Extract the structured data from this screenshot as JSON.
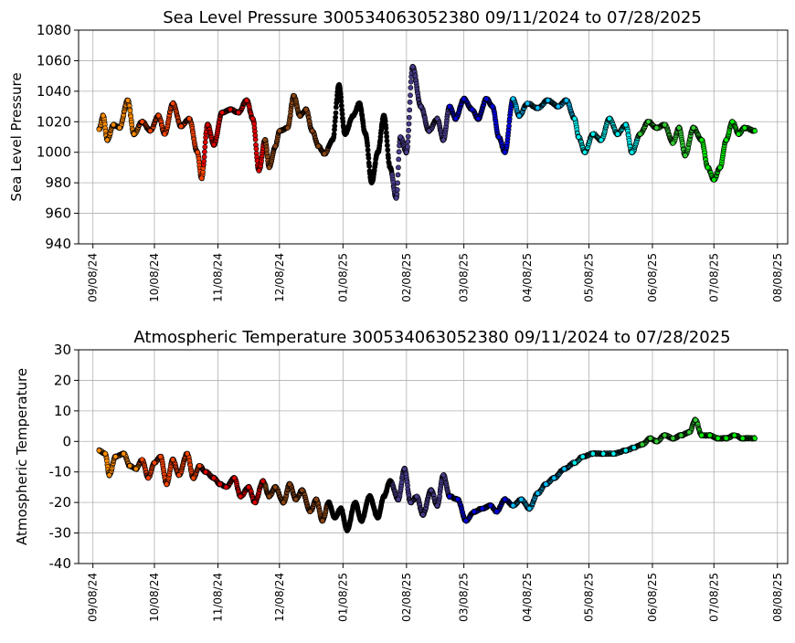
{
  "chart_data": [
    {
      "type": "scatter",
      "title": "Sea Level Pressure 300534063052380  09/11/2024 to 07/28/2025",
      "xlabel": "",
      "ylabel": "Sea Level Pressure",
      "ylim": [
        940,
        1080
      ],
      "yticks": [
        940,
        960,
        980,
        1000,
        1020,
        1040,
        1060,
        1080
      ],
      "xticks": [
        "09/08/24",
        "10/08/24",
        "11/08/24",
        "12/08/24",
        "01/08/25",
        "02/08/25",
        "03/08/25",
        "04/08/25",
        "05/08/25",
        "06/08/25",
        "07/08/25",
        "08/08/25"
      ],
      "grid": true,
      "month_colors": [
        "#ff8c00",
        "#ff4500",
        "#e00000",
        "#8b4513",
        "#000000",
        "#483d8b",
        "#0000e0",
        "#00bfff",
        "#00eeee",
        "#32cd32",
        "#00ee00"
      ],
      "series": [
        {
          "points": [
            [
              "09/11/24",
              1015
            ],
            [
              "09/13/24",
              1024
            ],
            [
              "09/15/24",
              1008
            ],
            [
              "09/18/24",
              1018
            ],
            [
              "09/21/24",
              1016
            ],
            [
              "09/25/24",
              1034
            ],
            [
              "09/28/24",
              1012
            ],
            [
              "10/02/24",
              1020
            ],
            [
              "10/06/24",
              1014
            ],
            [
              "10/10/24",
              1024
            ],
            [
              "10/13/24",
              1012
            ],
            [
              "10/17/24",
              1032
            ],
            [
              "10/21/24",
              1017
            ],
            [
              "10/25/24",
              1022
            ],
            [
              "10/29/24",
              1000
            ],
            [
              "10/31/24",
              983
            ],
            [
              "11/03/24",
              1018
            ],
            [
              "11/06/24",
              1005
            ],
            [
              "11/10/24",
              1026
            ],
            [
              "11/14/24",
              1028
            ],
            [
              "11/18/24",
              1026
            ],
            [
              "11/22/24",
              1034
            ],
            [
              "11/25/24",
              1022
            ],
            [
              "11/28/24",
              988
            ],
            [
              "12/01/24",
              1008
            ],
            [
              "12/03/24",
              990
            ],
            [
              "12/06/24",
              1004
            ],
            [
              "12/08/24",
              1014
            ],
            [
              "12/12/24",
              1016
            ],
            [
              "12/15/24",
              1037
            ],
            [
              "12/18/24",
              1024
            ],
            [
              "12/21/24",
              1028
            ],
            [
              "12/24/24",
              1014
            ],
            [
              "12/27/24",
              1004
            ],
            [
              "12/30/24",
              999
            ],
            [
              "01/03/25",
              1008
            ],
            [
              "01/06/25",
              1044
            ],
            [
              "01/09/25",
              1012
            ],
            [
              "01/13/25",
              1024
            ],
            [
              "01/16/25",
              1032
            ],
            [
              "01/19/25",
              1012
            ],
            [
              "01/22/25",
              980
            ],
            [
              "01/25/25",
              1000
            ],
            [
              "01/28/25",
              1024
            ],
            [
              "01/31/25",
              990
            ],
            [
              "02/03/25",
              970
            ],
            [
              "02/05/25",
              1010
            ],
            [
              "02/08/25",
              1000
            ],
            [
              "02/11/25",
              1056
            ],
            [
              "02/15/25",
              1030
            ],
            [
              "02/19/25",
              1014
            ],
            [
              "02/23/25",
              1022
            ],
            [
              "02/26/25",
              1008
            ],
            [
              "03/01/25",
              1030
            ],
            [
              "03/04/25",
              1022
            ],
            [
              "03/08/25",
              1035
            ],
            [
              "03/12/25",
              1028
            ],
            [
              "03/15/25",
              1022
            ],
            [
              "03/19/25",
              1035
            ],
            [
              "03/22/25",
              1030
            ],
            [
              "03/25/25",
              1010
            ],
            [
              "03/28/25",
              1000
            ],
            [
              "04/01/25",
              1035
            ],
            [
              "04/04/25",
              1024
            ],
            [
              "04/08/25",
              1032
            ],
            [
              "04/13/25",
              1029
            ],
            [
              "04/18/25",
              1034
            ],
            [
              "04/23/25",
              1030
            ],
            [
              "04/27/25",
              1034
            ],
            [
              "05/01/25",
              1022
            ],
            [
              "05/03/25",
              1010
            ],
            [
              "05/06/25",
              1000
            ],
            [
              "05/10/25",
              1012
            ],
            [
              "05/14/25",
              1008
            ],
            [
              "05/18/25",
              1022
            ],
            [
              "05/22/25",
              1012
            ],
            [
              "05/26/25",
              1018
            ],
            [
              "05/29/25",
              1000
            ],
            [
              "06/02/25",
              1012
            ],
            [
              "06/06/25",
              1020
            ],
            [
              "06/10/25",
              1016
            ],
            [
              "06/14/25",
              1018
            ],
            [
              "06/18/25",
              1006
            ],
            [
              "06/21/25",
              1016
            ],
            [
              "06/24/25",
              998
            ],
            [
              "06/28/25",
              1016
            ],
            [
              "07/02/25",
              1008
            ],
            [
              "07/05/25",
              990
            ],
            [
              "07/08/25",
              982
            ],
            [
              "07/11/25",
              990
            ],
            [
              "07/14/25",
              1008
            ],
            [
              "07/17/25",
              1020
            ],
            [
              "07/20/25",
              1012
            ],
            [
              "07/23/25",
              1016
            ],
            [
              "07/28/25",
              1014
            ]
          ]
        }
      ]
    },
    {
      "type": "scatter",
      "title": "Atmospheric Temperature 300534063052380  09/11/2024 to 07/28/2025",
      "xlabel": "",
      "ylabel": "Atmospheric Temperature",
      "ylim": [
        -40,
        30
      ],
      "yticks": [
        -40,
        -30,
        -20,
        -10,
        0,
        10,
        20,
        30
      ],
      "xticks": [
        "09/08/24",
        "10/08/24",
        "11/08/24",
        "12/08/24",
        "01/08/25",
        "02/08/25",
        "03/08/25",
        "04/08/25",
        "05/08/25",
        "06/08/25",
        "07/08/25",
        "08/08/25"
      ],
      "grid": true,
      "month_colors": [
        "#ff8c00",
        "#ff4500",
        "#e00000",
        "#8b4513",
        "#000000",
        "#483d8b",
        "#0000e0",
        "#00bfff",
        "#00eeee",
        "#32cd32",
        "#00ee00"
      ],
      "series": [
        {
          "points": [
            [
              "09/11/24",
              -3
            ],
            [
              "09/14/24",
              -4
            ],
            [
              "09/16/24",
              -11
            ],
            [
              "09/19/24",
              -5
            ],
            [
              "09/23/24",
              -4
            ],
            [
              "09/26/24",
              -8
            ],
            [
              "09/29/24",
              -9
            ],
            [
              "10/02/24",
              -6
            ],
            [
              "10/05/24",
              -12
            ],
            [
              "10/08/24",
              -7
            ],
            [
              "10/11/24",
              -5
            ],
            [
              "10/14/24",
              -14
            ],
            [
              "10/17/24",
              -6
            ],
            [
              "10/20/24",
              -11
            ],
            [
              "10/24/24",
              -4
            ],
            [
              "10/27/24",
              -12
            ],
            [
              "10/30/24",
              -8
            ],
            [
              "11/02/24",
              -10
            ],
            [
              "11/06/24",
              -12
            ],
            [
              "11/09/24",
              -14
            ],
            [
              "11/12/24",
              -15
            ],
            [
              "11/16/24",
              -12
            ],
            [
              "11/19/24",
              -18
            ],
            [
              "11/23/24",
              -15
            ],
            [
              "11/26/24",
              -20
            ],
            [
              "11/30/24",
              -13
            ],
            [
              "12/03/24",
              -18
            ],
            [
              "12/06/24",
              -15
            ],
            [
              "12/10/24",
              -20
            ],
            [
              "12/13/24",
              -14
            ],
            [
              "12/16/24",
              -19
            ],
            [
              "12/19/24",
              -16
            ],
            [
              "12/23/24",
              -23
            ],
            [
              "12/26/24",
              -19
            ],
            [
              "12/29/24",
              -26
            ],
            [
              "01/01/25",
              -20
            ],
            [
              "01/04/25",
              -25
            ],
            [
              "01/07/25",
              -22
            ],
            [
              "01/10/25",
              -29
            ],
            [
              "01/14/25",
              -20
            ],
            [
              "01/17/25",
              -26
            ],
            [
              "01/21/25",
              -18
            ],
            [
              "01/25/25",
              -25
            ],
            [
              "01/28/25",
              -18
            ],
            [
              "01/31/25",
              -13
            ],
            [
              "02/04/25",
              -19
            ],
            [
              "02/07/25",
              -9
            ],
            [
              "02/10/25",
              -20
            ],
            [
              "02/13/25",
              -18
            ],
            [
              "02/16/25",
              -24
            ],
            [
              "02/20/25",
              -16
            ],
            [
              "02/23/25",
              -21
            ],
            [
              "02/26/25",
              -11
            ],
            [
              "03/01/25",
              -18
            ],
            [
              "03/05/25",
              -19
            ],
            [
              "03/09/25",
              -26
            ],
            [
              "03/13/25",
              -23
            ],
            [
              "03/17/25",
              -22
            ],
            [
              "03/21/25",
              -21
            ],
            [
              "03/24/25",
              -23
            ],
            [
              "03/28/25",
              -19
            ],
            [
              "04/01/25",
              -21
            ],
            [
              "04/05/25",
              -19
            ],
            [
              "04/09/25",
              -22
            ],
            [
              "04/13/25",
              -17
            ],
            [
              "04/17/25",
              -14
            ],
            [
              "04/21/25",
              -12
            ],
            [
              "04/26/25",
              -9
            ],
            [
              "05/01/25",
              -7
            ],
            [
              "05/05/25",
              -5
            ],
            [
              "05/10/25",
              -4
            ],
            [
              "05/15/25",
              -4
            ],
            [
              "05/20/25",
              -4
            ],
            [
              "05/26/25",
              -3
            ],
            [
              "05/30/25",
              -2
            ],
            [
              "06/03/25",
              -1
            ],
            [
              "06/07/25",
              1
            ],
            [
              "06/10/25",
              0
            ],
            [
              "06/14/25",
              2
            ],
            [
              "06/18/25",
              1
            ],
            [
              "06/22/25",
              2
            ],
            [
              "06/26/25",
              3
            ],
            [
              "06/29/25",
              7
            ],
            [
              "07/02/25",
              2
            ],
            [
              "07/06/25",
              2
            ],
            [
              "07/10/25",
              1
            ],
            [
              "07/14/25",
              1
            ],
            [
              "07/18/25",
              2
            ],
            [
              "07/22/25",
              1
            ],
            [
              "07/28/25",
              1
            ]
          ]
        }
      ]
    }
  ]
}
